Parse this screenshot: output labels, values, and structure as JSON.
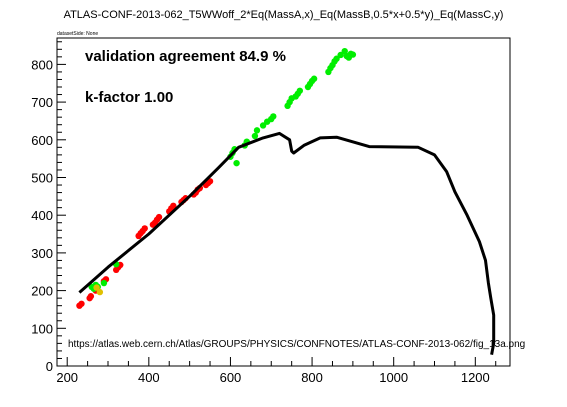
{
  "title": "ATLAS-CONF-2013-062_T5WWoff_2*Eq(MassA,x)_Eq(MassB,0.5*x+0.5*y)_Eq(MassC,y)",
  "dataset_label": "datasetSide: None",
  "chart_data": {
    "type": "scatter",
    "xlim": [
      175,
      1285
    ],
    "ylim": [
      0,
      870
    ],
    "x_ticks": [
      200,
      400,
      600,
      800,
      1000,
      1200
    ],
    "y_ticks": [
      0,
      100,
      200,
      300,
      400,
      500,
      600,
      700,
      800
    ],
    "grid": false,
    "annotations": {
      "agreement": "validation agreement 84.9 %",
      "kfactor": "k-factor 1.00",
      "url": "https://atlas.web.cern.ch/Atlas/GROUPS/PHYSICS/CONFNOTES/ATLAS-CONF-2013-062/fig_13a.png"
    },
    "line": {
      "color": "#000000",
      "points": [
        [
          230,
          195
        ],
        [
          300,
          262
        ],
        [
          400,
          350
        ],
        [
          500,
          450
        ],
        [
          570,
          525
        ],
        [
          620,
          580
        ],
        [
          680,
          605
        ],
        [
          720,
          617
        ],
        [
          745,
          600
        ],
        [
          750,
          570
        ],
        [
          755,
          565
        ],
        [
          780,
          585
        ],
        [
          820,
          605
        ],
        [
          860,
          607
        ],
        [
          940,
          582
        ],
        [
          1060,
          580
        ],
        [
          1100,
          560
        ],
        [
          1130,
          515
        ],
        [
          1150,
          462
        ],
        [
          1180,
          400
        ],
        [
          1210,
          330
        ],
        [
          1225,
          280
        ],
        [
          1232,
          220
        ],
        [
          1238,
          180
        ],
        [
          1245,
          135
        ],
        [
          1245,
          60
        ],
        [
          1240,
          30
        ]
      ]
    },
    "series": [
      {
        "color": "#ff0000",
        "points": [
          [
            230,
            160
          ],
          [
            235,
            165
          ],
          [
            255,
            180
          ],
          [
            258,
            185
          ],
          [
            270,
            200
          ],
          [
            290,
            225
          ],
          [
            295,
            230
          ],
          [
            320,
            255
          ],
          [
            325,
            262
          ],
          [
            330,
            268
          ],
          [
            375,
            345
          ],
          [
            380,
            352
          ],
          [
            385,
            358
          ],
          [
            390,
            365
          ],
          [
            410,
            375
          ],
          [
            415,
            380
          ],
          [
            420,
            388
          ],
          [
            425,
            395
          ],
          [
            450,
            410
          ],
          [
            455,
            418
          ],
          [
            460,
            425
          ],
          [
            480,
            435
          ],
          [
            485,
            440
          ],
          [
            490,
            445
          ],
          [
            510,
            455
          ],
          [
            515,
            460
          ],
          [
            520,
            468
          ],
          [
            525,
            472
          ],
          [
            540,
            480
          ],
          [
            545,
            485
          ],
          [
            550,
            490
          ]
        ]
      },
      {
        "color": "#00ee00",
        "points": [
          [
            260,
            210
          ],
          [
            265,
            205
          ],
          [
            270,
            215
          ],
          [
            275,
            210
          ],
          [
            290,
            220
          ],
          [
            320,
            270
          ],
          [
            600,
            555
          ],
          [
            605,
            565
          ],
          [
            610,
            575
          ],
          [
            615,
            538
          ],
          [
            635,
            585
          ],
          [
            640,
            595
          ],
          [
            660,
            610
          ],
          [
            665,
            625
          ],
          [
            680,
            638
          ],
          [
            690,
            648
          ],
          [
            700,
            655
          ],
          [
            705,
            662
          ],
          [
            740,
            690
          ],
          [
            745,
            700
          ],
          [
            750,
            710
          ],
          [
            760,
            715
          ],
          [
            765,
            722
          ],
          [
            770,
            730
          ],
          [
            790,
            740
          ],
          [
            795,
            748
          ],
          [
            800,
            756
          ],
          [
            805,
            762
          ],
          [
            840,
            780
          ],
          [
            845,
            790
          ],
          [
            850,
            798
          ],
          [
            855,
            808
          ],
          [
            860,
            815
          ],
          [
            870,
            825
          ],
          [
            880,
            835
          ],
          [
            885,
            822
          ],
          [
            890,
            818
          ],
          [
            895,
            828
          ],
          [
            900,
            826
          ]
        ]
      },
      {
        "color": "#e0c000",
        "points": [
          [
            272,
            208
          ],
          [
            280,
            196
          ]
        ]
      }
    ]
  }
}
